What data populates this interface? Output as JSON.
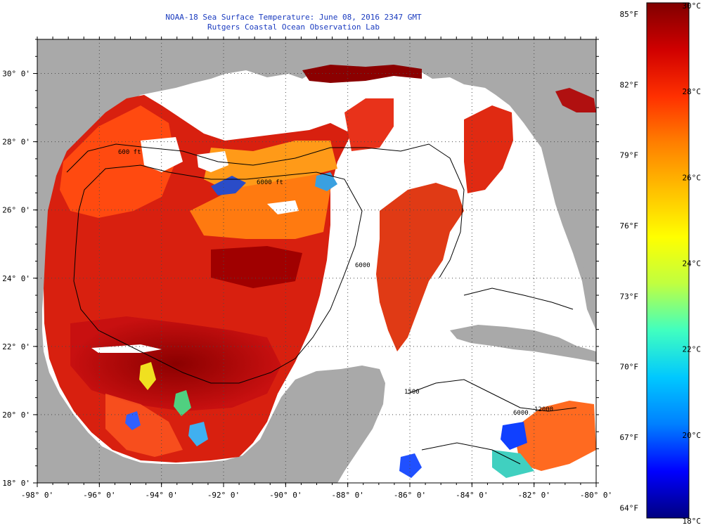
{
  "title": {
    "line1": "NOAA-18 Sea Surface Temperature:  June 08, 2016 2347 GMT",
    "line2": "Rutgers Coastal Ocean Observation Lab"
  },
  "map": {
    "lon_ticks": [
      "-98° 0'",
      "-96° 0'",
      "-94° 0'",
      "-92° 0'",
      "-90° 0'",
      "-88° 0'",
      "-86° 0'",
      "-84° 0'",
      "-82° 0'",
      "-80° 0'"
    ],
    "lat_ticks": [
      "30° 0'",
      "28° 0'",
      "26° 0'",
      "24° 0'",
      "22° 0'",
      "20° 0'",
      "18° 0'"
    ],
    "lon_range": [
      -98,
      -80
    ],
    "lat_range": [
      18,
      31
    ],
    "contour_labels": [
      "600 ft",
      "6000 ft",
      "6000",
      "1500",
      "6000",
      "12000"
    ],
    "colors": {
      "land": "#a9a9a9",
      "cloud": "#ffffff",
      "contour": "#000000",
      "grid": "#4a4a4a"
    }
  },
  "colorbar": {
    "fahrenheit_ticks": [
      "85°F",
      "82°F",
      "79°F",
      "76°F",
      "73°F",
      "70°F",
      "67°F",
      "64°F"
    ],
    "celsius_ticks": [
      "30°C",
      "28°C",
      "26°C",
      "24°C",
      "22°C",
      "20°C",
      "18°C"
    ],
    "range_c": [
      18,
      30
    ],
    "stops": [
      "#000080",
      "#0000ff",
      "#0080ff",
      "#00c8ff",
      "#40ffc0",
      "#c0ff40",
      "#ffff00",
      "#ffc000",
      "#ff8000",
      "#ff3000",
      "#d00000",
      "#800000"
    ]
  }
}
